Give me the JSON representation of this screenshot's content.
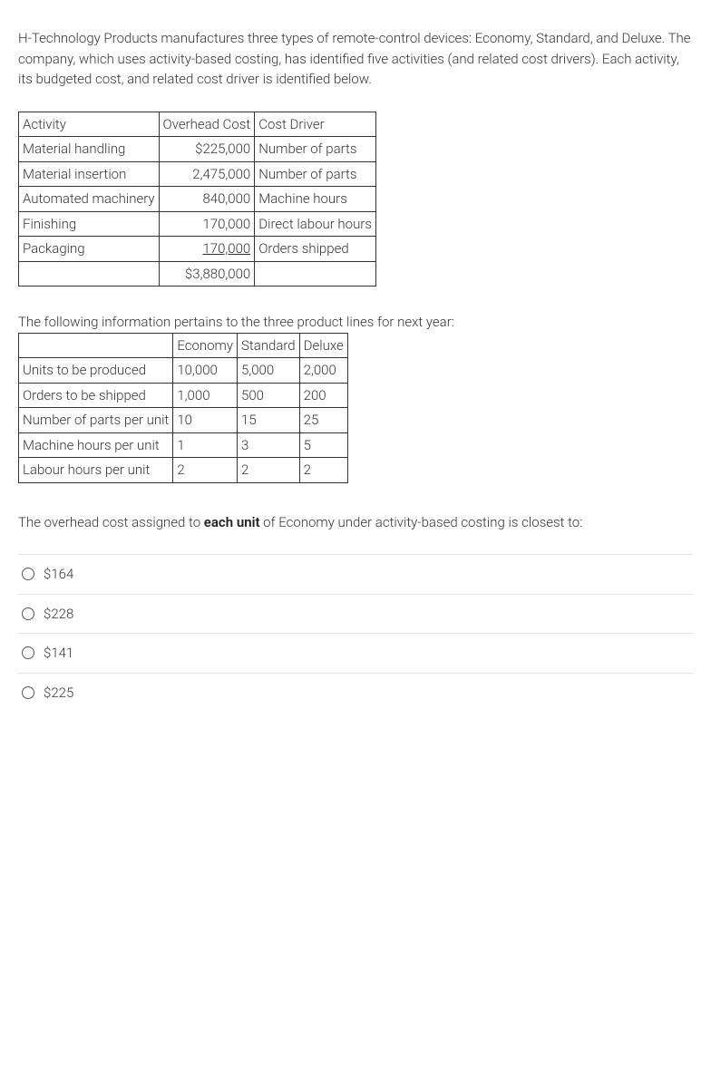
{
  "intro": "H-Technology Products manufactures three types of remote-control devices: Economy, Standard, and Deluxe.   The company, which uses activity-based costing, has identified five activities (and related cost drivers).   Each activity, its budgeted cost, and related cost driver is identified below.",
  "overhead_table": {
    "header": {
      "c0": "Activity",
      "c1": "Overhead Cost",
      "c2": "Cost Driver"
    },
    "rows": [
      {
        "c0": "Material handling",
        "c1": "$225,000",
        "c2": "Number of parts"
      },
      {
        "c0": "Material insertion",
        "c1": "2,475,000",
        "c2": "Number of parts"
      },
      {
        "c0": "Automated machinery",
        "c1": "840,000",
        "c2": "Machine hours"
      },
      {
        "c0": "Finishing",
        "c1": "170,000",
        "c2": "Direct labour hours"
      },
      {
        "c0": "Packaging",
        "c1": "170,000",
        "c2": "Orders shipped",
        "underlined": true
      }
    ],
    "total": "$3,880,000"
  },
  "section_text": "The following information pertains to the three product lines for next year:",
  "product_table": {
    "header": {
      "c0": "",
      "c1": "Economy",
      "c2": "Standard",
      "c3": "Deluxe"
    },
    "rows": [
      {
        "c0": "Units to be produced",
        "c1": "10,000",
        "c2": "5,000",
        "c3": "2,000"
      },
      {
        "c0": "Orders to be shipped",
        "c1": "1,000",
        "c2": "500",
        "c3": "200"
      },
      {
        "c0": "Number of parts per unit",
        "c1": "10",
        "c2": "15",
        "c3": "25"
      },
      {
        "c0": "Machine hours per unit",
        "c1": "1",
        "c2": "3",
        "c3": "5"
      },
      {
        "c0": "Labour hours per unit",
        "c1": "2",
        "c2": "2",
        "c3": "2"
      }
    ]
  },
  "question_prefix": "The overhead cost assigned to ",
  "question_bold": "each unit",
  "question_suffix": " of Economy under activity-based costing is closest to:",
  "options": [
    "$164",
    "$228",
    "$141",
    "$225"
  ]
}
